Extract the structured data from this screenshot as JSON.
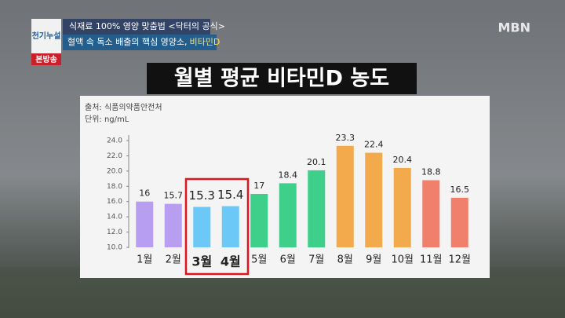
{
  "broadcast": {
    "logo": "천기누설",
    "headline": "식재료 100% 영양 맞춤법 <닥터의 공식>",
    "subheadline_main": "혈액 속 독소 배출의 핵심 영양소,",
    "subheadline_accent": "비타민D",
    "badge": "본방송",
    "channel": "MBN"
  },
  "chart_data": {
    "type": "bar",
    "title": "월별 평균 비타민D 농도",
    "source": "출처: 식품의약품안전처",
    "unit": "단위: ng/mL",
    "categories": [
      "1월",
      "2월",
      "3월",
      "4월",
      "5월",
      "6월",
      "7월",
      "8월",
      "9월",
      "10월",
      "11월",
      "12월"
    ],
    "values": [
      16,
      15.7,
      15.3,
      15.4,
      17,
      18.4,
      20.1,
      23.3,
      22.4,
      20.4,
      18.8,
      16.5
    ],
    "colors": [
      "#b79ef0",
      "#b79ef0",
      "#6cc8f6",
      "#6cc8f6",
      "#3ecf8a",
      "#3ecf8a",
      "#3ecf8a",
      "#f2aa4c",
      "#f2aa4c",
      "#f2aa4c",
      "#f07f6c",
      "#f07f6c"
    ],
    "highlight": [
      2,
      3
    ],
    "ylim": [
      10,
      24
    ],
    "yticks": [
      {
        "value": 10,
        "label": "10.0"
      },
      {
        "value": 12,
        "label": "12.0"
      },
      {
        "value": 14,
        "label": "14.0"
      },
      {
        "value": 16,
        "label": "16.0"
      },
      {
        "value": 18,
        "label": "18.0"
      },
      {
        "value": 20,
        "label": "20.0"
      },
      {
        "value": 22,
        "label": "22.0"
      },
      {
        "value": 24,
        "label": "24.0"
      }
    ]
  }
}
